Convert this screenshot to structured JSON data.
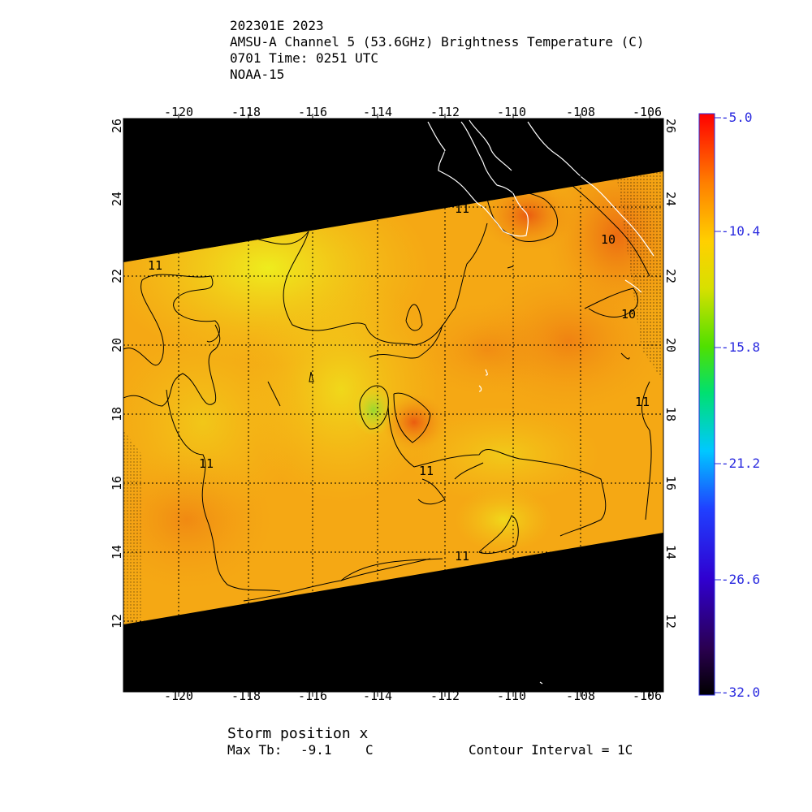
{
  "header": {
    "line1": "202301E 2023",
    "line2": "AMSU-A Channel 5 (53.6GHz) Brightness Temperature (C)",
    "line3": "0701 Time: 0251 UTC",
    "line4": "NOAA-15"
  },
  "map": {
    "lon_ticks": [
      "-120",
      "-118",
      "-116",
      "-114",
      "-112",
      "-110",
      "-108",
      "-106"
    ],
    "lat_ticks": [
      "12",
      "14",
      "16",
      "18",
      "20",
      "22",
      "24",
      "26"
    ],
    "contour_labels": [
      "11",
      "11",
      "10",
      "10",
      "11",
      "11",
      "11",
      "11"
    ],
    "colors": {
      "background": "#000000",
      "field_base": "#f7ae12",
      "field_warm": "#ee6a10",
      "field_cool": "#e9e320",
      "field_green": "#a6da2a",
      "coast": "#ffffff",
      "contour": "#000000"
    }
  },
  "colorbar": {
    "labels": [
      "-5.0",
      "-10.4",
      "-15.8",
      "-21.2",
      "-26.6",
      "-32.0"
    ],
    "label_color": "#2a2adf"
  },
  "footer": {
    "storm_position": "Storm position x",
    "max_tb_label": "Max Tb:",
    "max_tb_value": "-9.1",
    "max_tb_unit": "C",
    "contour_interval": "Contour Interval = 1C"
  }
}
